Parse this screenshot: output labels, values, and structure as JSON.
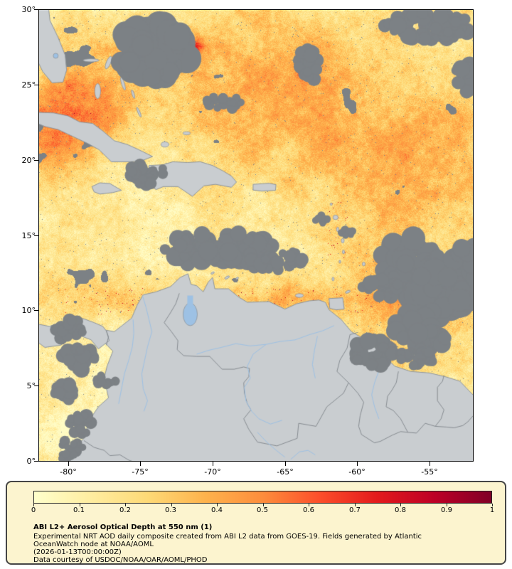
{
  "figure": {
    "map": {
      "extent": {
        "lon_min": -82,
        "lon_max": -52,
        "lat_min": 0,
        "lat_max": 30
      },
      "lat_ticks": [
        "30°",
        "25°",
        "20°",
        "15°",
        "10°",
        "5°",
        "0°"
      ],
      "lon_ticks": [
        "-80°",
        "-75°",
        "-70°",
        "-65°",
        "-60°",
        "-55°"
      ]
    },
    "legend": {
      "title": "ABI L2+ Aerosol Optical Depth at 550 nm (1)",
      "description_line1": "Experimental NRT AOD daily composite created from ABI L2 data from GOES-19. Fields generated by Atlantic",
      "description_line2": "OceanWatch node at NOAA/AOML",
      "timestamp": "(2026-01-13T00:00:00Z)",
      "credit": "Data courtesy of USDOC/NOAA/OAR/AOML/PHOD",
      "colorbar": {
        "value_range": [
          0,
          1
        ],
        "tick_labels": [
          "0",
          "0.1",
          "0.2",
          "0.3",
          "0.4",
          "0.5",
          "0.6",
          "0.7",
          "0.8",
          "0.9",
          "1"
        ],
        "colors": [
          "#ffffcc",
          "#ffeda0",
          "#fed976",
          "#feb24c",
          "#fd8d3c",
          "#fc4e2a",
          "#e31a1c",
          "#bd0026",
          "#800026"
        ]
      }
    }
  },
  "colors": {
    "legend_bg": "#fcf4cf",
    "land": "#c9cdd0",
    "coast": "#8f969b",
    "border": "#7f858a",
    "river": "#9dc1e4",
    "cloud": "#7c8185",
    "frame": "#000000"
  }
}
